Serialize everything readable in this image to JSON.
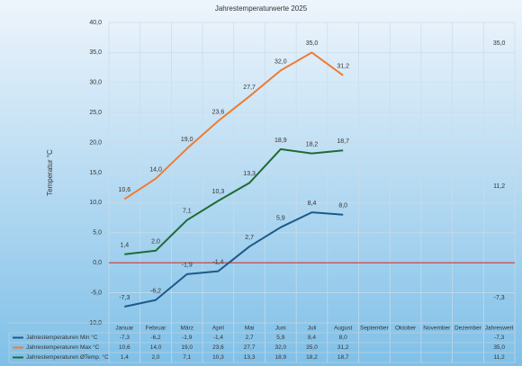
{
  "chart_data": {
    "type": "line",
    "title": "Jahrestemperaturwerte 2025",
    "y_label": "Temperatur °C",
    "categories": [
      "Januar",
      "Februar",
      "März",
      "April",
      "Mai",
      "Juni",
      "Juli",
      "August",
      "September",
      "Oktober",
      "November",
      "Dezember",
      "Jahreswert"
    ],
    "series": [
      {
        "name": "Jahrestemperaturen Min °C",
        "color": "#1d5a8a",
        "values": [
          -7.3,
          -6.2,
          -1.9,
          -1.4,
          2.7,
          5.9,
          8.4,
          8.0,
          null,
          null,
          null,
          null,
          -7.3
        ],
        "value_labels": [
          "-7,3",
          "-6,2",
          "-1,9",
          "-1,4",
          "2,7",
          "5,9",
          "8,4",
          "8,0",
          null,
          null,
          null,
          null,
          "-7,3"
        ]
      },
      {
        "name": "Jahrestemperaturen Max °C",
        "color": "#ed7d31",
        "values": [
          10.6,
          14.0,
          19.0,
          23.6,
          27.7,
          32.0,
          35.0,
          31.2,
          null,
          null,
          null,
          null,
          35.0
        ],
        "value_labels": [
          "10,6",
          "14,0",
          "19,0",
          "23,6",
          "27,7",
          "32,0",
          "35,0",
          "31,2",
          null,
          null,
          null,
          null,
          "35,0"
        ]
      },
      {
        "name": "Jahrestemperaturen ØTemp. °C",
        "color": "#1f6b35",
        "values": [
          1.4,
          2.0,
          7.1,
          10.3,
          13.3,
          18.9,
          18.2,
          18.7,
          null,
          null,
          null,
          null,
          11.2
        ],
        "value_labels": [
          "1,4",
          "2,0",
          "7,1",
          "10,3",
          "13,3",
          "18,9",
          "18,2",
          "18,7",
          null,
          null,
          null,
          null,
          "11,2"
        ]
      }
    ],
    "ylim": [
      -10,
      40
    ],
    "yticks": [
      {
        "value": -10,
        "label": "-10,0"
      },
      {
        "value": -5,
        "label": "-5,0"
      },
      {
        "value": 0,
        "label": "0,0"
      },
      {
        "value": 5,
        "label": "5,0"
      },
      {
        "value": 10,
        "label": "10,0"
      },
      {
        "value": 15,
        "label": "15,0"
      },
      {
        "value": 20,
        "label": "20,0"
      },
      {
        "value": 25,
        "label": "25,0"
      },
      {
        "value": 30,
        "label": "30,0"
      },
      {
        "value": 35,
        "label": "35,0"
      },
      {
        "value": 40,
        "label": "40,0"
      }
    ],
    "grid": true,
    "zero_line_color": "#d9342b",
    "legend": "bottom"
  }
}
